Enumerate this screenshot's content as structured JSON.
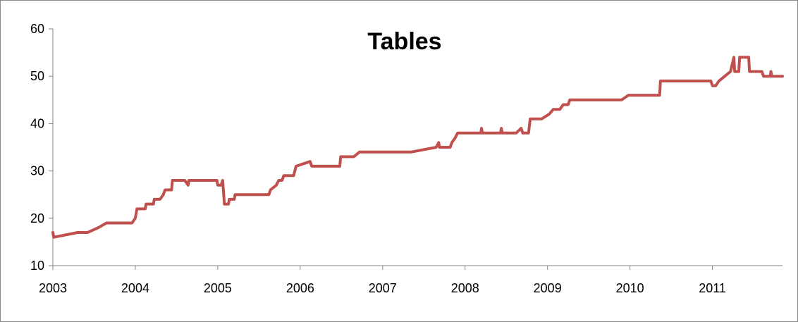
{
  "chart_data": {
    "type": "line",
    "title": "Tables",
    "xlabel": "",
    "ylabel": "",
    "xlim": [
      2003,
      2011.85
    ],
    "ylim": [
      10,
      60
    ],
    "x_ticks": [
      "2003",
      "2004",
      "2005",
      "2006",
      "2007",
      "2008",
      "2009",
      "2010",
      "2011"
    ],
    "y_ticks": [
      "10",
      "20",
      "30",
      "40",
      "50",
      "60"
    ],
    "grid": false,
    "legend": "none",
    "series": [
      {
        "color": "#c0504d",
        "points": [
          [
            2003.0,
            17
          ],
          [
            2003.01,
            16
          ],
          [
            2003.3,
            17
          ],
          [
            2003.42,
            17
          ],
          [
            2003.55,
            18
          ],
          [
            2003.65,
            19
          ],
          [
            2003.96,
            19
          ],
          [
            2004.0,
            20
          ],
          [
            2004.02,
            22
          ],
          [
            2004.12,
            22
          ],
          [
            2004.13,
            23
          ],
          [
            2004.22,
            23
          ],
          [
            2004.23,
            24
          ],
          [
            2004.3,
            24
          ],
          [
            2004.34,
            25
          ],
          [
            2004.36,
            26
          ],
          [
            2004.44,
            26
          ],
          [
            2004.45,
            28
          ],
          [
            2004.6,
            28
          ],
          [
            2004.64,
            27
          ],
          [
            2004.65,
            28
          ],
          [
            2004.99,
            28
          ],
          [
            2005.0,
            27
          ],
          [
            2005.04,
            27
          ],
          [
            2005.06,
            28
          ],
          [
            2005.08,
            23
          ],
          [
            2005.13,
            23
          ],
          [
            2005.14,
            24
          ],
          [
            2005.2,
            24
          ],
          [
            2005.21,
            25
          ],
          [
            2005.62,
            25
          ],
          [
            2005.64,
            26
          ],
          [
            2005.71,
            27
          ],
          [
            2005.74,
            28
          ],
          [
            2005.78,
            28
          ],
          [
            2005.8,
            29
          ],
          [
            2005.92,
            29
          ],
          [
            2005.95,
            31
          ],
          [
            2006.12,
            32
          ],
          [
            2006.14,
            31
          ],
          [
            2006.48,
            31
          ],
          [
            2006.49,
            33
          ],
          [
            2006.65,
            33
          ],
          [
            2006.72,
            34
          ],
          [
            2007.35,
            34
          ],
          [
            2007.65,
            35
          ],
          [
            2007.68,
            36
          ],
          [
            2007.69,
            35
          ],
          [
            2007.82,
            35
          ],
          [
            2007.84,
            36
          ],
          [
            2007.88,
            37
          ],
          [
            2007.91,
            38
          ],
          [
            2008.19,
            38
          ],
          [
            2008.2,
            39
          ],
          [
            2008.21,
            38
          ],
          [
            2008.43,
            38
          ],
          [
            2008.44,
            39
          ],
          [
            2008.45,
            38
          ],
          [
            2008.62,
            38
          ],
          [
            2008.68,
            39
          ],
          [
            2008.7,
            38
          ],
          [
            2008.77,
            38
          ],
          [
            2008.79,
            41
          ],
          [
            2008.93,
            41
          ],
          [
            2009.02,
            42
          ],
          [
            2009.07,
            43
          ],
          [
            2009.15,
            43
          ],
          [
            2009.19,
            44
          ],
          [
            2009.25,
            44
          ],
          [
            2009.27,
            45
          ],
          [
            2009.9,
            45
          ],
          [
            2009.98,
            46
          ],
          [
            2010.36,
            46
          ],
          [
            2010.37,
            49
          ],
          [
            2010.98,
            49
          ],
          [
            2011.0,
            48
          ],
          [
            2011.04,
            48
          ],
          [
            2011.08,
            49
          ],
          [
            2011.15,
            50
          ],
          [
            2011.22,
            51
          ],
          [
            2011.26,
            54
          ],
          [
            2011.27,
            51
          ],
          [
            2011.32,
            51
          ],
          [
            2011.33,
            54
          ],
          [
            2011.44,
            54
          ],
          [
            2011.45,
            51
          ],
          [
            2011.6,
            51
          ],
          [
            2011.62,
            50
          ],
          [
            2011.7,
            50
          ],
          [
            2011.71,
            51
          ],
          [
            2011.72,
            50
          ],
          [
            2011.85,
            50
          ]
        ]
      }
    ]
  }
}
